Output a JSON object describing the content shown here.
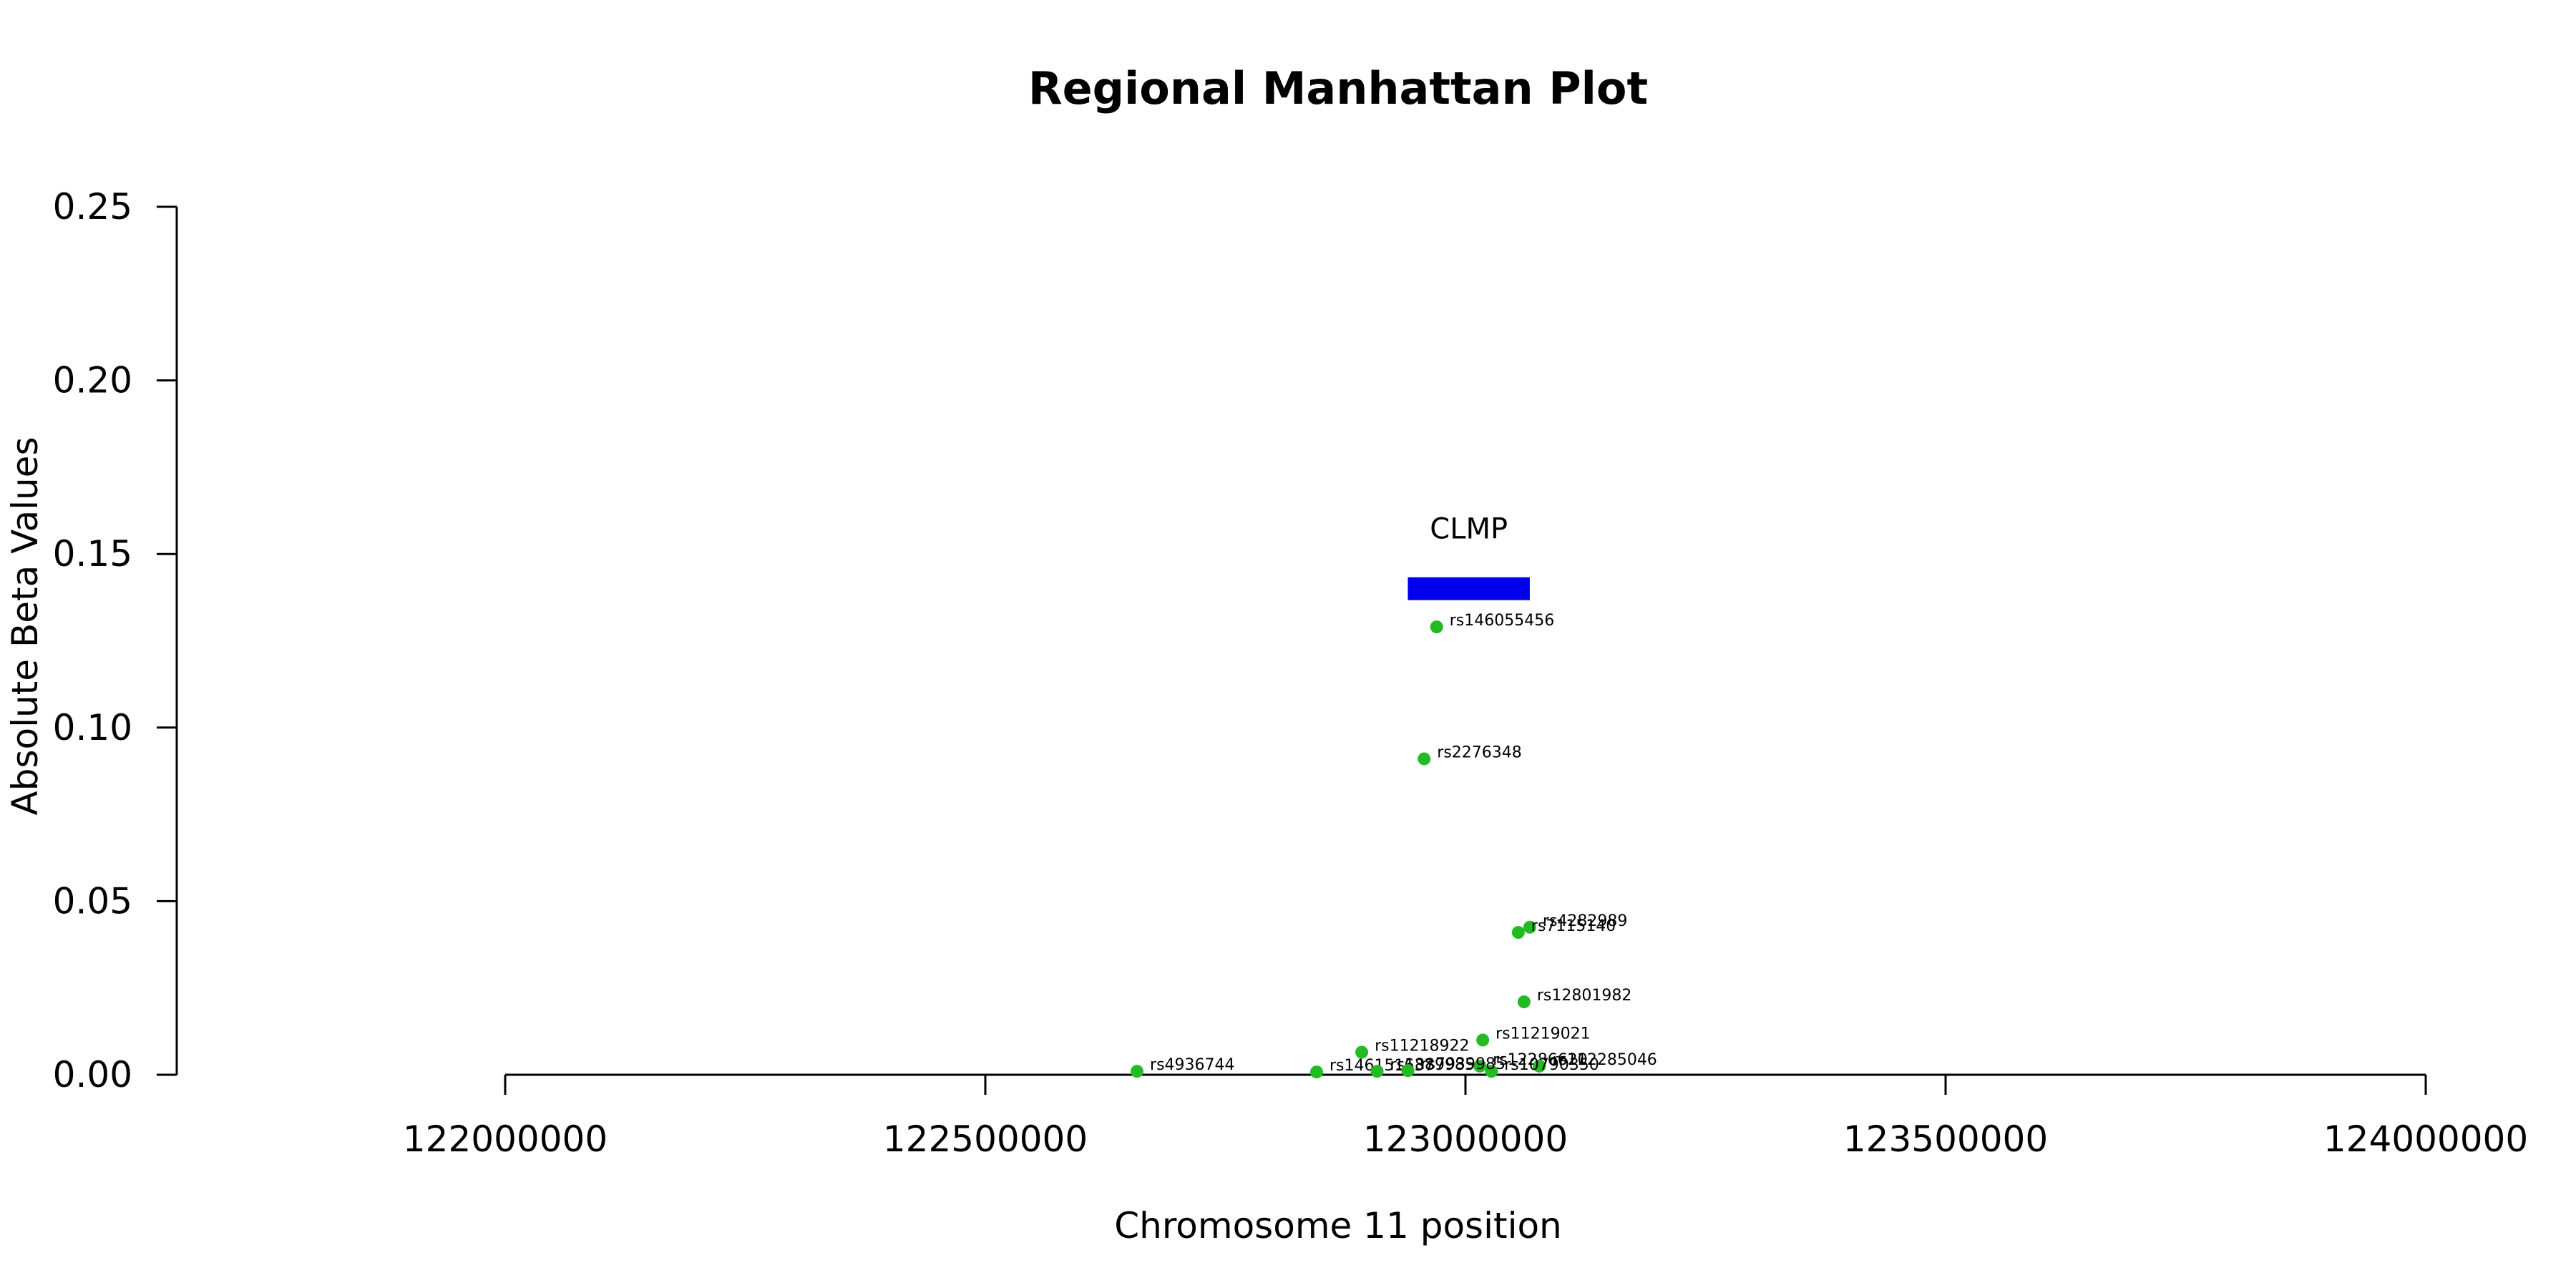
{
  "chart_data": {
    "type": "scatter",
    "title": "Regional Manhattan Plot",
    "xlabel": "Chromosome 11 position",
    "ylabel": "Absolute Beta Values",
    "xlim": [
      122000000,
      124000000
    ],
    "ylim": [
      0,
      0.25
    ],
    "x_ticks": [
      122000000,
      122500000,
      123000000,
      123500000,
      124000000
    ],
    "x_tick_labels": [
      "122000000",
      "122500000",
      "123000000",
      "123500000",
      "124000000"
    ],
    "y_ticks": [
      0,
      0.05,
      0.1,
      0.15,
      0.2,
      0.25
    ],
    "y_tick_labels": [
      "0.00",
      "0.05",
      "0.10",
      "0.15",
      "0.20",
      "0.25"
    ],
    "grid": false,
    "point_color": "#22bb22",
    "gene": {
      "name": "CLMP",
      "start": 122940000,
      "end": 123067000,
      "y": 0.14,
      "color": "#0000ee"
    },
    "points": [
      {
        "label": "rs146055456",
        "x": 122970000,
        "y": 0.129
      },
      {
        "label": "rs2276348",
        "x": 122957000,
        "y": 0.091
      },
      {
        "label": "rs4282989",
        "x": 123067000,
        "y": 0.0425
      },
      {
        "label": "rs7115140",
        "x": 123055000,
        "y": 0.041
      },
      {
        "label": "rs12801982",
        "x": 123061000,
        "y": 0.021
      },
      {
        "label": "rs11219021",
        "x": 123018000,
        "y": 0.01
      },
      {
        "label": "rs11218922",
        "x": 122892000,
        "y": 0.0065
      },
      {
        "label": "rs12286620",
        "x": 123015000,
        "y": 0.0025
      },
      {
        "label": "rs112285046",
        "x": 123077000,
        "y": 0.0025
      },
      {
        "label": "rs10790350",
        "x": 123027000,
        "y": 0.001
      },
      {
        "label": "rs4936744",
        "x": 122658000,
        "y": 0.001
      },
      {
        "label": "rs146151637",
        "x": 122845000,
        "y": 0.0008
      },
      {
        "label": "rs1889985",
        "x": 122908000,
        "y": 0.001
      },
      {
        "label": "rs7939985",
        "x": 122940000,
        "y": 0.0012
      }
    ]
  }
}
